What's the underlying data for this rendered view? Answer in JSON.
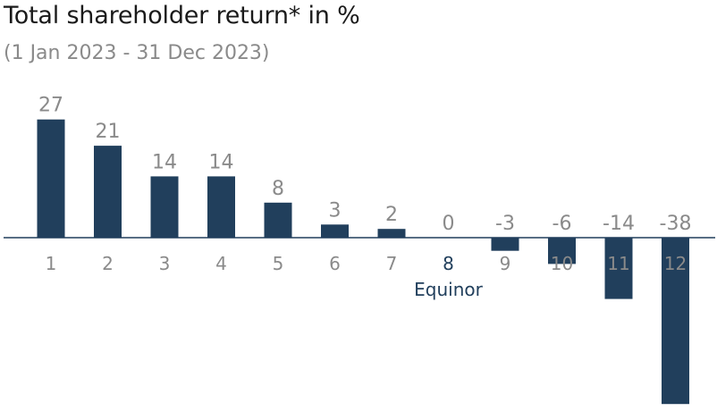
{
  "title": "Total shareholder return* in %",
  "subtitle": "(1 Jan 2023 - 31 Dec 2023)",
  "colors": {
    "bar": "#213f5c",
    "label": "#8a8a8a",
    "highlight_label": "#213f5c",
    "axis": "#213f5c",
    "title": "#1a1a1a"
  },
  "chart_data": {
    "type": "bar",
    "categories": [
      "1",
      "2",
      "3",
      "4",
      "5",
      "6",
      "7",
      "8",
      "9",
      "10",
      "11",
      "12"
    ],
    "values": [
      27,
      21,
      14,
      14,
      8,
      3,
      2,
      0,
      -3,
      -6,
      -14,
      -38
    ],
    "highlight": {
      "category": "8",
      "label": "Equinor"
    },
    "title": "Total shareholder return* in %",
    "subtitle": "(1 Jan 2023 - 31 Dec 2023)",
    "xlabel": "",
    "ylabel": "",
    "ylim": [
      -38,
      27
    ],
    "grid": false,
    "legend": "none"
  }
}
